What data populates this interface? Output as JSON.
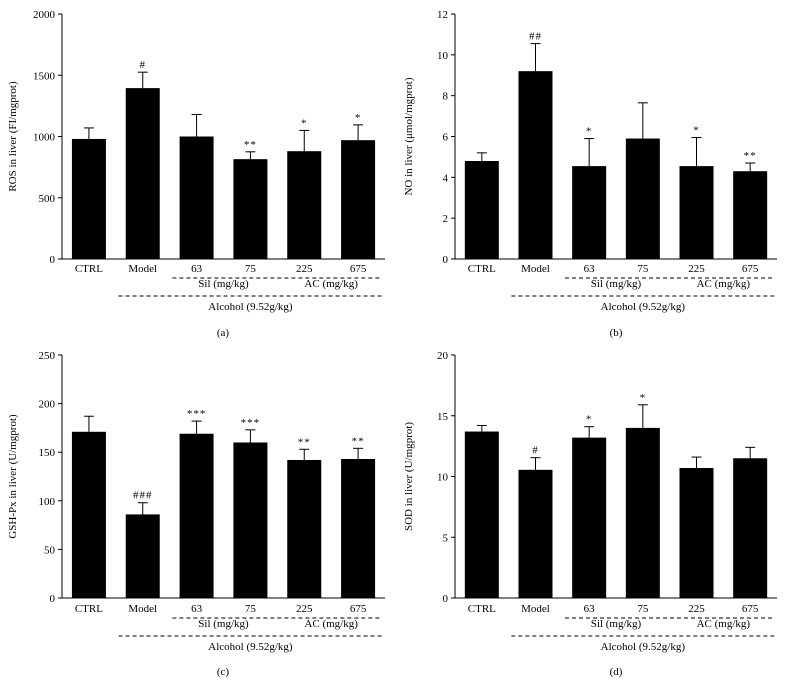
{
  "colors": {
    "bar": "#000000",
    "background": "#ffffff",
    "axis": "#000000"
  },
  "chart_data": [
    {
      "type": "bar",
      "panel_label": "(a)",
      "ylabel": "ROS in liver (FI/mgprot)",
      "ylim": [
        0,
        2000
      ],
      "yticks": [
        0,
        500,
        1000,
        1500,
        2000
      ],
      "ytick_labels": [
        "0",
        "500",
        "1000",
        "1500",
        "2000"
      ],
      "categories": [
        "CTRL",
        "Model",
        "63",
        "75",
        "225",
        "675"
      ],
      "values": [
        980,
        1395,
        1000,
        815,
        880,
        970
      ],
      "errors": [
        90,
        130,
        180,
        60,
        170,
        125
      ],
      "annotations": [
        "",
        "#",
        "",
        "**",
        "*",
        "*"
      ],
      "groups": {
        "sil": "Sil (mg/kg)",
        "ac": "AC (mg/kg)",
        "alcohol": "Alcohol (9.52g/kg)"
      }
    },
    {
      "type": "bar",
      "panel_label": "(b)",
      "ylabel": "NO in liver (μmol/mgprot)",
      "ylim": [
        0,
        12
      ],
      "yticks": [
        0,
        2,
        4,
        6,
        8,
        10,
        12
      ],
      "ytick_labels": [
        "0",
        "2",
        "4",
        "6",
        "8",
        "10",
        "12"
      ],
      "categories": [
        "CTRL",
        "Model",
        "63",
        "75",
        "225",
        "675"
      ],
      "values": [
        4.8,
        9.2,
        4.55,
        5.9,
        4.55,
        4.3
      ],
      "errors": [
        0.4,
        1.35,
        1.35,
        1.75,
        1.4,
        0.4
      ],
      "annotations": [
        "",
        "##",
        "*",
        "",
        "*",
        "**"
      ],
      "groups": {
        "sil": "Sil (mg/kg)",
        "ac": "AC (mg/kg)",
        "alcohol": "Alcohol (9.52g/kg)"
      }
    },
    {
      "type": "bar",
      "panel_label": "(c)",
      "ylabel": "GSH-Px in liver (U/mgprot)",
      "ylim": [
        0,
        250
      ],
      "yticks": [
        0,
        50,
        100,
        150,
        200,
        250
      ],
      "ytick_labels": [
        "0",
        "50",
        "100",
        "150",
        "200",
        "250"
      ],
      "categories": [
        "CTRL",
        "Model",
        "63",
        "75",
        "225",
        "675"
      ],
      "values": [
        171,
        86,
        169,
        160,
        142,
        143
      ],
      "errors": [
        16,
        12,
        13,
        13,
        11,
        11
      ],
      "annotations": [
        "",
        "###",
        "***",
        "***",
        "**",
        "**"
      ],
      "groups": {
        "sil": "Sil (mg/kg)",
        "ac": "AC (mg/kg)",
        "alcohol": "Alcohol (9.52g/kg)"
      }
    },
    {
      "type": "bar",
      "panel_label": "(d)",
      "ylabel": "SOD in liver (U/mgprot)",
      "ylim": [
        0,
        20
      ],
      "yticks": [
        0,
        5,
        10,
        15,
        20
      ],
      "ytick_labels": [
        "0",
        "5",
        "10",
        "15",
        "20"
      ],
      "categories": [
        "CTRL",
        "Model",
        "63",
        "75",
        "225",
        "675"
      ],
      "values": [
        13.7,
        10.55,
        13.2,
        14.0,
        10.7,
        11.5
      ],
      "errors": [
        0.5,
        1.0,
        0.9,
        1.9,
        0.9,
        0.9
      ],
      "annotations": [
        "",
        "#",
        "*",
        "*",
        "",
        ""
      ],
      "groups": {
        "sil": "Sil (mg/kg)",
        "ac": "AC (mg/kg)",
        "alcohol": "Alcohol (9.52g/kg)"
      }
    }
  ]
}
